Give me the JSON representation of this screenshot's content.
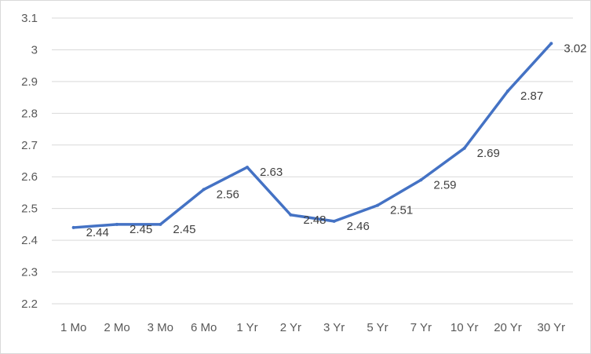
{
  "chart_data": {
    "type": "line",
    "categories": [
      "1 Mo",
      "2 Mo",
      "3 Mo",
      "6 Mo",
      "1 Yr",
      "2 Yr",
      "3 Yr",
      "5 Yr",
      "7 Yr",
      "10 Yr",
      "20 Yr",
      "30 Yr"
    ],
    "series": [
      {
        "values": [
          2.44,
          2.45,
          2.45,
          2.56,
          2.63,
          2.48,
          2.46,
          2.51,
          2.59,
          2.69,
          2.87,
          3.02
        ]
      }
    ],
    "data_labels": [
      "2.44",
      "2.45",
      "2.45",
      "2.56",
      "2.63",
      "2.48",
      "2.46",
      "2.51",
      "2.59",
      "2.69",
      "2.87",
      "3.02"
    ],
    "y_ticks": [
      "2.2",
      "2.3",
      "2.4",
      "2.5",
      "2.6",
      "2.7",
      "2.8",
      "2.9",
      "3",
      "3.1"
    ],
    "ylim": [
      2.2,
      3.1
    ],
    "grid": true,
    "legend": "none",
    "colors": {
      "line": "#4472c4",
      "grid": "#d9d9d9",
      "text": "#595959"
    }
  }
}
